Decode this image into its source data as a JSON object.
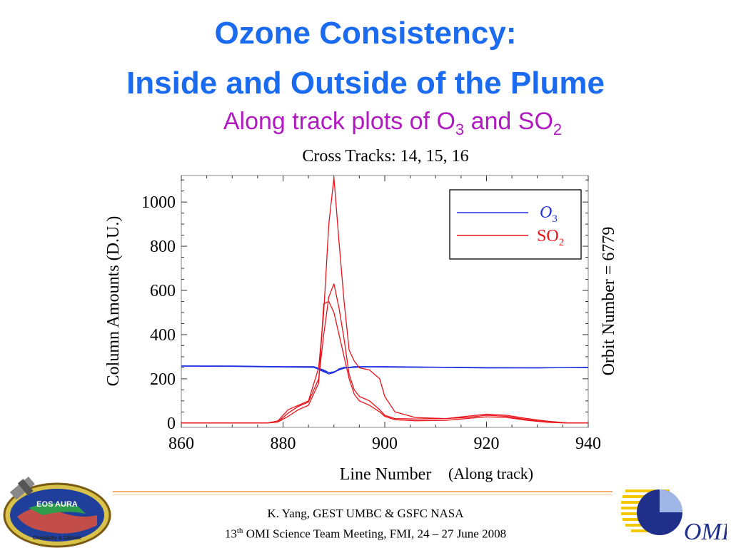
{
  "title": {
    "line1": "Ozone Consistency:",
    "line2": "Inside and Outside of the Plume"
  },
  "subtitle": {
    "prefix": "Along track plots of O",
    "o3_sub": "3",
    "middle": " and SO",
    "so2_sub": "2"
  },
  "colors": {
    "title": "#1a6bf0",
    "subtitle": "#b01ac0",
    "o3": "#1f2fe0",
    "so2": "#e8141a"
  },
  "chart_data": {
    "type": "line",
    "title": "Cross Tracks: 14, 15, 16",
    "xlabel": "Line Number",
    "ylabel": "Column Amounts (D.U.)",
    "right_label": "Orbit Number = 6779",
    "xlim": [
      860,
      940
    ],
    "ylim": [
      -20,
      1120
    ],
    "x_ticks": [
      860,
      880,
      900,
      920,
      940
    ],
    "y_ticks": [
      0,
      200,
      400,
      600,
      800,
      1000
    ],
    "legend_position": "top-right",
    "legend": [
      {
        "label": "O",
        "sub": "3",
        "color": "#1f2fe0"
      },
      {
        "label": "SO",
        "sub": "2",
        "color": "#e8141a"
      }
    ],
    "series": [
      {
        "color": "#1f2fe0",
        "x": [
          860,
          870,
          880,
          886,
          888,
          889,
          890,
          891,
          892,
          893,
          894,
          896,
          900,
          910,
          920,
          930,
          940
        ],
        "y": [
          258,
          258,
          255,
          255,
          240,
          228,
          230,
          240,
          248,
          252,
          255,
          255,
          255,
          253,
          251,
          250,
          251
        ]
      },
      {
        "color": "#1f2fe0",
        "x": [
          860,
          870,
          880,
          886,
          888,
          889,
          890,
          891,
          892,
          893,
          894,
          896,
          900,
          910,
          920,
          930,
          940
        ],
        "y": [
          258,
          257,
          254,
          253,
          232,
          222,
          228,
          245,
          252,
          250,
          252,
          254,
          253,
          252,
          250,
          249,
          252
        ]
      },
      {
        "color": "#1f2fe0",
        "x": [
          860,
          870,
          880,
          886,
          888,
          889,
          890,
          891,
          892,
          893,
          894,
          896,
          900,
          910,
          920,
          930,
          940
        ],
        "y": [
          257,
          256,
          253,
          252,
          236,
          228,
          232,
          242,
          248,
          251,
          253,
          254,
          254,
          252,
          249,
          250,
          250
        ]
      },
      {
        "color": "#e8141a",
        "x": [
          860,
          870,
          877,
          879,
          881,
          883,
          885,
          887,
          888,
          889,
          890,
          891,
          892,
          893,
          894,
          895,
          897,
          899,
          900,
          902,
          906,
          912,
          916,
          920,
          924,
          928,
          932,
          936,
          940
        ],
        "y": [
          0,
          0,
          0,
          10,
          60,
          80,
          100,
          250,
          500,
          900,
          1110,
          820,
          550,
          330,
          280,
          250,
          240,
          200,
          120,
          50,
          25,
          20,
          25,
          35,
          30,
          15,
          5,
          0,
          0
        ]
      },
      {
        "color": "#e8141a",
        "x": [
          860,
          870,
          877,
          879,
          881,
          883,
          885,
          887,
          888,
          889,
          890,
          891,
          892,
          893,
          894,
          895,
          897,
          899,
          900,
          902,
          906,
          912,
          916,
          920,
          924,
          928,
          932,
          936,
          940
        ],
        "y": [
          0,
          0,
          0,
          5,
          45,
          75,
          95,
          200,
          400,
          570,
          630,
          520,
          380,
          220,
          150,
          120,
          100,
          60,
          35,
          20,
          18,
          20,
          30,
          40,
          35,
          20,
          8,
          0,
          0
        ]
      },
      {
        "color": "#e8141a",
        "x": [
          860,
          870,
          877,
          879,
          881,
          883,
          885,
          887,
          888,
          889,
          890,
          891,
          892,
          893,
          894,
          895,
          897,
          899,
          900,
          902,
          906,
          912,
          916,
          920,
          924,
          928,
          932,
          936,
          940
        ],
        "y": [
          0,
          0,
          0,
          5,
          30,
          60,
          80,
          180,
          540,
          550,
          500,
          400,
          300,
          200,
          130,
          100,
          80,
          50,
          30,
          15,
          10,
          12,
          20,
          28,
          25,
          12,
          3,
          0,
          0
        ]
      }
    ]
  },
  "annotation": "(Along track)",
  "footer": {
    "line1": "K. Yang, GEST UMBC  & GSFC NASA",
    "line2_num": "13",
    "line2_sup": "th",
    "line2_rest": " OMI Science Team Meeting, FMI, 24 – 27 June 2008"
  },
  "logos": {
    "left_text": "EOS AURA",
    "left_ribbon": "Chemistry & Climate",
    "right_text": "OMI"
  }
}
